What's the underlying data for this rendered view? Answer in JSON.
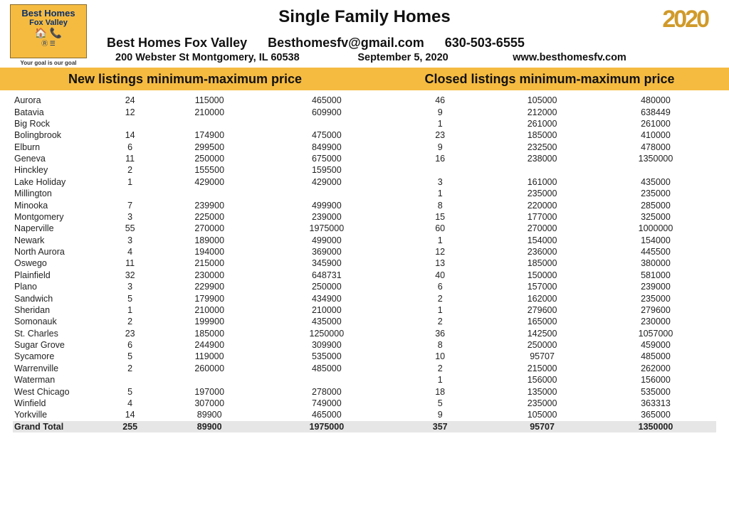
{
  "logo": {
    "line1": "Best Homes",
    "line2": "Fox Valley",
    "tagline": "Your goal is our goal"
  },
  "year_badge": "2020",
  "title": "Single Family Homes",
  "company": {
    "name": "Best Homes Fox Valley",
    "email": "Besthomesfv@gmail.com",
    "phone": "630-503-6555",
    "address": "200 Webster St Montgomery, IL 60538",
    "date": "September 5, 2020",
    "website": "www.besthomesfv.com"
  },
  "banner": {
    "left": "New listings minimum-maximum price",
    "right": "Closed listings minimum-maximum price"
  },
  "colors": {
    "banner_bg": "#f5bb41",
    "total_bg": "#e6e6e6",
    "text": "#111111"
  },
  "rows": [
    {
      "city": "Aurora",
      "c1": "24",
      "c2": "115000",
      "c3": "465000",
      "c4": "46",
      "c5": "105000",
      "c6": "480000"
    },
    {
      "city": "Batavia",
      "c1": "12",
      "c2": "210000",
      "c3": "609900",
      "c4": "9",
      "c5": "212000",
      "c6": "638449"
    },
    {
      "city": "Big Rock",
      "c1": "",
      "c2": "",
      "c3": "",
      "c4": "1",
      "c5": "261000",
      "c6": "261000"
    },
    {
      "city": "Bolingbrook",
      "c1": "14",
      "c2": "174900",
      "c3": "475000",
      "c4": "23",
      "c5": "185000",
      "c6": "410000"
    },
    {
      "city": "Elburn",
      "c1": "6",
      "c2": "299500",
      "c3": "849900",
      "c4": "9",
      "c5": "232500",
      "c6": "478000"
    },
    {
      "city": "Geneva",
      "c1": "11",
      "c2": "250000",
      "c3": "675000",
      "c4": "16",
      "c5": "238000",
      "c6": "1350000"
    },
    {
      "city": "Hinckley",
      "c1": "2",
      "c2": "155500",
      "c3": "159500",
      "c4": "",
      "c5": "",
      "c6": ""
    },
    {
      "city": "Lake Holiday",
      "c1": "1",
      "c2": "429000",
      "c3": "429000",
      "c4": "3",
      "c5": "161000",
      "c6": "435000"
    },
    {
      "city": "Millington",
      "c1": "",
      "c2": "",
      "c3": "",
      "c4": "1",
      "c5": "235000",
      "c6": "235000"
    },
    {
      "city": "Minooka",
      "c1": "7",
      "c2": "239900",
      "c3": "499900",
      "c4": "8",
      "c5": "220000",
      "c6": "285000"
    },
    {
      "city": "Montgomery",
      "c1": "3",
      "c2": "225000",
      "c3": "239000",
      "c4": "15",
      "c5": "177000",
      "c6": "325000"
    },
    {
      "city": "Naperville",
      "c1": "55",
      "c2": "270000",
      "c3": "1975000",
      "c4": "60",
      "c5": "270000",
      "c6": "1000000"
    },
    {
      "city": "Newark",
      "c1": "3",
      "c2": "189000",
      "c3": "499000",
      "c4": "1",
      "c5": "154000",
      "c6": "154000"
    },
    {
      "city": "North Aurora",
      "c1": "4",
      "c2": "194000",
      "c3": "369000",
      "c4": "12",
      "c5": "236000",
      "c6": "445500"
    },
    {
      "city": "Oswego",
      "c1": "11",
      "c2": "215000",
      "c3": "345900",
      "c4": "13",
      "c5": "185000",
      "c6": "380000"
    },
    {
      "city": "Plainfield",
      "c1": "32",
      "c2": "230000",
      "c3": "648731",
      "c4": "40",
      "c5": "150000",
      "c6": "581000"
    },
    {
      "city": "Plano",
      "c1": "3",
      "c2": "229900",
      "c3": "250000",
      "c4": "6",
      "c5": "157000",
      "c6": "239000"
    },
    {
      "city": "Sandwich",
      "c1": "5",
      "c2": "179900",
      "c3": "434900",
      "c4": "2",
      "c5": "162000",
      "c6": "235000"
    },
    {
      "city": "Sheridan",
      "c1": "1",
      "c2": "210000",
      "c3": "210000",
      "c4": "1",
      "c5": "279600",
      "c6": "279600"
    },
    {
      "city": "Somonauk",
      "c1": "2",
      "c2": "199900",
      "c3": "435000",
      "c4": "2",
      "c5": "165000",
      "c6": "230000"
    },
    {
      "city": "St. Charles",
      "c1": "23",
      "c2": "185000",
      "c3": "1250000",
      "c4": "36",
      "c5": "142500",
      "c6": "1057000"
    },
    {
      "city": "Sugar Grove",
      "c1": "6",
      "c2": "244900",
      "c3": "309900",
      "c4": "8",
      "c5": "250000",
      "c6": "459000"
    },
    {
      "city": "Sycamore",
      "c1": "5",
      "c2": "119000",
      "c3": "535000",
      "c4": "10",
      "c5": "95707",
      "c6": "485000"
    },
    {
      "city": "Warrenville",
      "c1": "2",
      "c2": "260000",
      "c3": "485000",
      "c4": "2",
      "c5": "215000",
      "c6": "262000"
    },
    {
      "city": "Waterman",
      "c1": "",
      "c2": "",
      "c3": "",
      "c4": "1",
      "c5": "156000",
      "c6": "156000"
    },
    {
      "city": "West Chicago",
      "c1": "5",
      "c2": "197000",
      "c3": "278000",
      "c4": "18",
      "c5": "135000",
      "c6": "535000"
    },
    {
      "city": "Winfield",
      "c1": "4",
      "c2": "307000",
      "c3": "749000",
      "c4": "5",
      "c5": "235000",
      "c6": "363313"
    },
    {
      "city": "Yorkville",
      "c1": "14",
      "c2": "89900",
      "c3": "465000",
      "c4": "9",
      "c5": "105000",
      "c6": "365000"
    }
  ],
  "total": {
    "city": "Grand Total",
    "c1": "255",
    "c2": "89900",
    "c3": "1975000",
    "c4": "357",
    "c5": "95707",
    "c6": "1350000"
  }
}
